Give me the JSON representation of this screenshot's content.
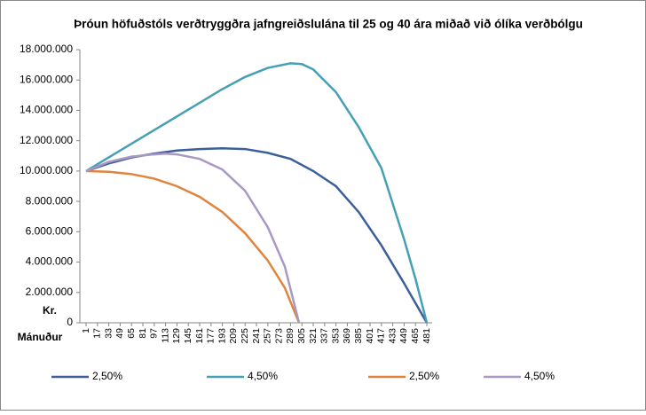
{
  "chart_data": {
    "type": "line",
    "title": "Þróun höfuðstóls verðtryggðra jafngreiðslulána til 25 og 40 ára miðað við ólíka verðbólgu",
    "y_label": "Kr.",
    "x_label": "Mánuður",
    "xlim": [
      1,
      481
    ],
    "xticks": [
      1,
      17,
      33,
      49,
      65,
      81,
      97,
      113,
      129,
      145,
      161,
      177,
      193,
      209,
      225,
      241,
      257,
      273,
      289,
      305,
      321,
      337,
      353,
      369,
      385,
      401,
      417,
      433,
      449,
      465,
      481
    ],
    "ylim": [
      0,
      18000000
    ],
    "yticks": [
      {
        "value": 0,
        "label": "0"
      },
      {
        "value": 2000000,
        "label": "2.000.000"
      },
      {
        "value": 4000000,
        "label": "4.000.000"
      },
      {
        "value": 6000000,
        "label": "6.000.000"
      },
      {
        "value": 8000000,
        "label": "8.000.000"
      },
      {
        "value": 10000000,
        "label": "10.000.000"
      },
      {
        "value": 12000000,
        "label": "12.000.000"
      },
      {
        "value": 14000000,
        "label": "14.000.000"
      },
      {
        "value": 16000000,
        "label": "16.000.000"
      },
      {
        "value": 18000000,
        "label": "18.000.000"
      }
    ],
    "legend": "bottom",
    "series": [
      {
        "name": "2,50%",
        "color": "#3b5f9b",
        "x": [
          1,
          33,
          65,
          97,
          129,
          161,
          193,
          225,
          257,
          289,
          321,
          353,
          385,
          417,
          449,
          481
        ],
        "values": [
          10000000,
          10500000,
          10900000,
          11150000,
          11350000,
          11450000,
          11500000,
          11450000,
          11200000,
          10800000,
          10000000,
          9000000,
          7300000,
          5100000,
          2600000,
          0
        ]
      },
      {
        "name": "4,50%",
        "color": "#45a0b5",
        "x": [
          1,
          33,
          65,
          97,
          129,
          161,
          193,
          225,
          257,
          289,
          305,
          321,
          353,
          385,
          417,
          449,
          465,
          481
        ],
        "values": [
          10000000,
          10900000,
          11800000,
          12700000,
          13600000,
          14500000,
          15400000,
          16200000,
          16800000,
          17100000,
          17050000,
          16700000,
          15200000,
          12900000,
          10200000,
          5500000,
          2900000,
          0
        ]
      },
      {
        "name": "2,50%",
        "color": "#e0843d",
        "x": [
          1,
          33,
          65,
          97,
          129,
          161,
          193,
          225,
          257,
          281,
          301
        ],
        "values": [
          10000000,
          9950000,
          9800000,
          9500000,
          9000000,
          8300000,
          7300000,
          5900000,
          4100000,
          2300000,
          0
        ]
      },
      {
        "name": "4,50%",
        "color": "#a898c4",
        "x": [
          1,
          33,
          65,
          97,
          113,
          129,
          161,
          193,
          225,
          257,
          281,
          301
        ],
        "values": [
          10000000,
          10600000,
          10950000,
          11100000,
          11150000,
          11100000,
          10800000,
          10100000,
          8700000,
          6300000,
          3700000,
          0
        ]
      }
    ]
  }
}
